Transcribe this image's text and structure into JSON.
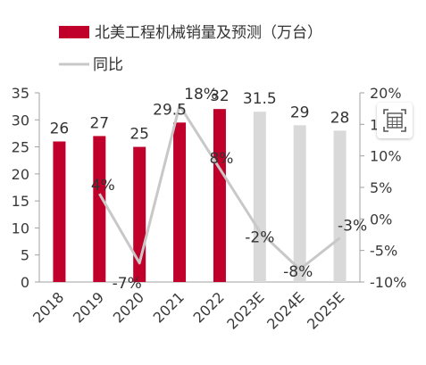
{
  "chart_data": {
    "type": "bar",
    "categories": [
      "2018",
      "2019",
      "2020",
      "2021",
      "2022",
      "2023E",
      "2024E",
      "2025E"
    ],
    "series": [
      {
        "name": "北美工程机械销量及预测（万台）",
        "axis": "left",
        "values": [
          26,
          27,
          25,
          29.5,
          32,
          31.5,
          29,
          28
        ],
        "labels": [
          "26",
          "27",
          "25",
          "29.5",
          "32",
          "31.5",
          "29",
          "28"
        ]
      },
      {
        "name": "同比",
        "type": "line",
        "axis": "right",
        "values": [
          null,
          4,
          -7,
          18,
          8,
          -2,
          -8,
          -3
        ],
        "labels": [
          "",
          "4%",
          "-7%",
          "18%",
          "8%",
          "-2%",
          "-8%",
          "-3%"
        ]
      }
    ],
    "left_axis": {
      "ylim": [
        0,
        35
      ],
      "ticks": [
        "0",
        "5",
        "10",
        "15",
        "20",
        "25",
        "30",
        "35"
      ]
    },
    "right_axis": {
      "ylim": [
        -10,
        20
      ],
      "ticks": [
        "-10%",
        "-5%",
        "0%",
        "5%",
        "10%",
        "15%",
        "20%"
      ]
    },
    "colors": {
      "actual_bar": "#c0002a",
      "forecast_bar": "#d9d9d9",
      "line": "#c8c8c8",
      "axis": "#a0a0a0"
    },
    "legend_position": "top-left",
    "grid": false
  },
  "widget": {
    "icon": "calculator-icon"
  }
}
